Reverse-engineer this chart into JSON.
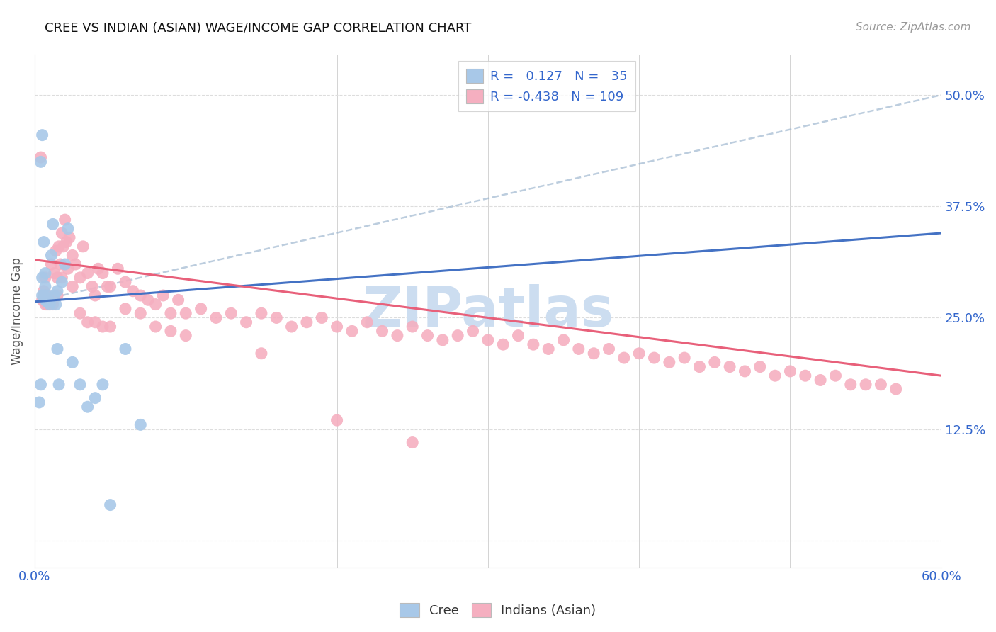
{
  "title": "CREE VS INDIAN (ASIAN) WAGE/INCOME GAP CORRELATION CHART",
  "source": "Source: ZipAtlas.com",
  "ylabel": "Wage/Income Gap",
  "xlim": [
    0.0,
    0.6
  ],
  "ylim": [
    -0.03,
    0.545
  ],
  "cree_R": 0.127,
  "cree_N": 35,
  "indian_R": -0.438,
  "indian_N": 109,
  "cree_color": "#a8c8e8",
  "indian_color": "#f5afc0",
  "cree_line_color": "#4472c4",
  "indian_line_color": "#e8607a",
  "dashed_line_color": "#a0b8d0",
  "legend_text_color": "#3366cc",
  "watermark": "ZIPatlas",
  "watermark_color": "#ccddf0",
  "yticks": [
    0.0,
    0.125,
    0.25,
    0.375,
    0.5
  ],
  "ytick_labels": [
    "",
    "12.5%",
    "25.0%",
    "37.5%",
    "50.0%"
  ],
  "cree_line_x0": 0.0,
  "cree_line_y0": 0.268,
  "cree_line_x1": 0.6,
  "cree_line_y1": 0.345,
  "indian_line_x0": 0.0,
  "indian_line_y0": 0.315,
  "indian_line_x1": 0.6,
  "indian_line_y1": 0.185,
  "dashed_line_x0": 0.0,
  "dashed_line_y0": 0.268,
  "dashed_line_x1": 0.6,
  "dashed_line_y1": 0.5,
  "cree_x": [
    0.003,
    0.004,
    0.004,
    0.005,
    0.005,
    0.005,
    0.006,
    0.006,
    0.007,
    0.007,
    0.007,
    0.008,
    0.008,
    0.009,
    0.009,
    0.01,
    0.01,
    0.011,
    0.012,
    0.013,
    0.014,
    0.015,
    0.015,
    0.016,
    0.018,
    0.02,
    0.022,
    0.025,
    0.03,
    0.035,
    0.04,
    0.045,
    0.05,
    0.06,
    0.07
  ],
  "cree_y": [
    0.155,
    0.175,
    0.425,
    0.275,
    0.295,
    0.455,
    0.275,
    0.335,
    0.27,
    0.285,
    0.3,
    0.268,
    0.275,
    0.268,
    0.27,
    0.265,
    0.268,
    0.32,
    0.355,
    0.275,
    0.265,
    0.215,
    0.28,
    0.175,
    0.29,
    0.31,
    0.35,
    0.2,
    0.175,
    0.15,
    0.16,
    0.175,
    0.04,
    0.215,
    0.13
  ],
  "indian_x": [
    0.004,
    0.005,
    0.006,
    0.007,
    0.007,
    0.008,
    0.008,
    0.009,
    0.009,
    0.01,
    0.01,
    0.011,
    0.012,
    0.012,
    0.013,
    0.014,
    0.015,
    0.015,
    0.016,
    0.017,
    0.018,
    0.018,
    0.019,
    0.02,
    0.021,
    0.022,
    0.023,
    0.025,
    0.027,
    0.03,
    0.032,
    0.035,
    0.038,
    0.04,
    0.042,
    0.045,
    0.048,
    0.05,
    0.055,
    0.06,
    0.065,
    0.07,
    0.075,
    0.08,
    0.085,
    0.09,
    0.095,
    0.1,
    0.11,
    0.12,
    0.13,
    0.14,
    0.15,
    0.16,
    0.17,
    0.18,
    0.19,
    0.2,
    0.21,
    0.22,
    0.23,
    0.24,
    0.25,
    0.26,
    0.27,
    0.28,
    0.29,
    0.3,
    0.31,
    0.32,
    0.33,
    0.34,
    0.35,
    0.36,
    0.37,
    0.38,
    0.39,
    0.4,
    0.41,
    0.42,
    0.43,
    0.44,
    0.45,
    0.46,
    0.47,
    0.48,
    0.49,
    0.5,
    0.51,
    0.52,
    0.53,
    0.54,
    0.55,
    0.56,
    0.57,
    0.025,
    0.03,
    0.035,
    0.04,
    0.045,
    0.05,
    0.06,
    0.07,
    0.08,
    0.09,
    0.1,
    0.15,
    0.2,
    0.25
  ],
  "indian_y": [
    0.43,
    0.27,
    0.28,
    0.265,
    0.295,
    0.265,
    0.275,
    0.265,
    0.27,
    0.265,
    0.27,
    0.31,
    0.265,
    0.27,
    0.3,
    0.325,
    0.275,
    0.295,
    0.33,
    0.31,
    0.295,
    0.345,
    0.33,
    0.36,
    0.335,
    0.305,
    0.34,
    0.32,
    0.31,
    0.295,
    0.33,
    0.3,
    0.285,
    0.275,
    0.305,
    0.3,
    0.285,
    0.285,
    0.305,
    0.29,
    0.28,
    0.275,
    0.27,
    0.265,
    0.275,
    0.255,
    0.27,
    0.255,
    0.26,
    0.25,
    0.255,
    0.245,
    0.255,
    0.25,
    0.24,
    0.245,
    0.25,
    0.24,
    0.235,
    0.245,
    0.235,
    0.23,
    0.24,
    0.23,
    0.225,
    0.23,
    0.235,
    0.225,
    0.22,
    0.23,
    0.22,
    0.215,
    0.225,
    0.215,
    0.21,
    0.215,
    0.205,
    0.21,
    0.205,
    0.2,
    0.205,
    0.195,
    0.2,
    0.195,
    0.19,
    0.195,
    0.185,
    0.19,
    0.185,
    0.18,
    0.185,
    0.175,
    0.175,
    0.175,
    0.17,
    0.285,
    0.255,
    0.245,
    0.245,
    0.24,
    0.24,
    0.26,
    0.255,
    0.24,
    0.235,
    0.23,
    0.21,
    0.135,
    0.11
  ]
}
